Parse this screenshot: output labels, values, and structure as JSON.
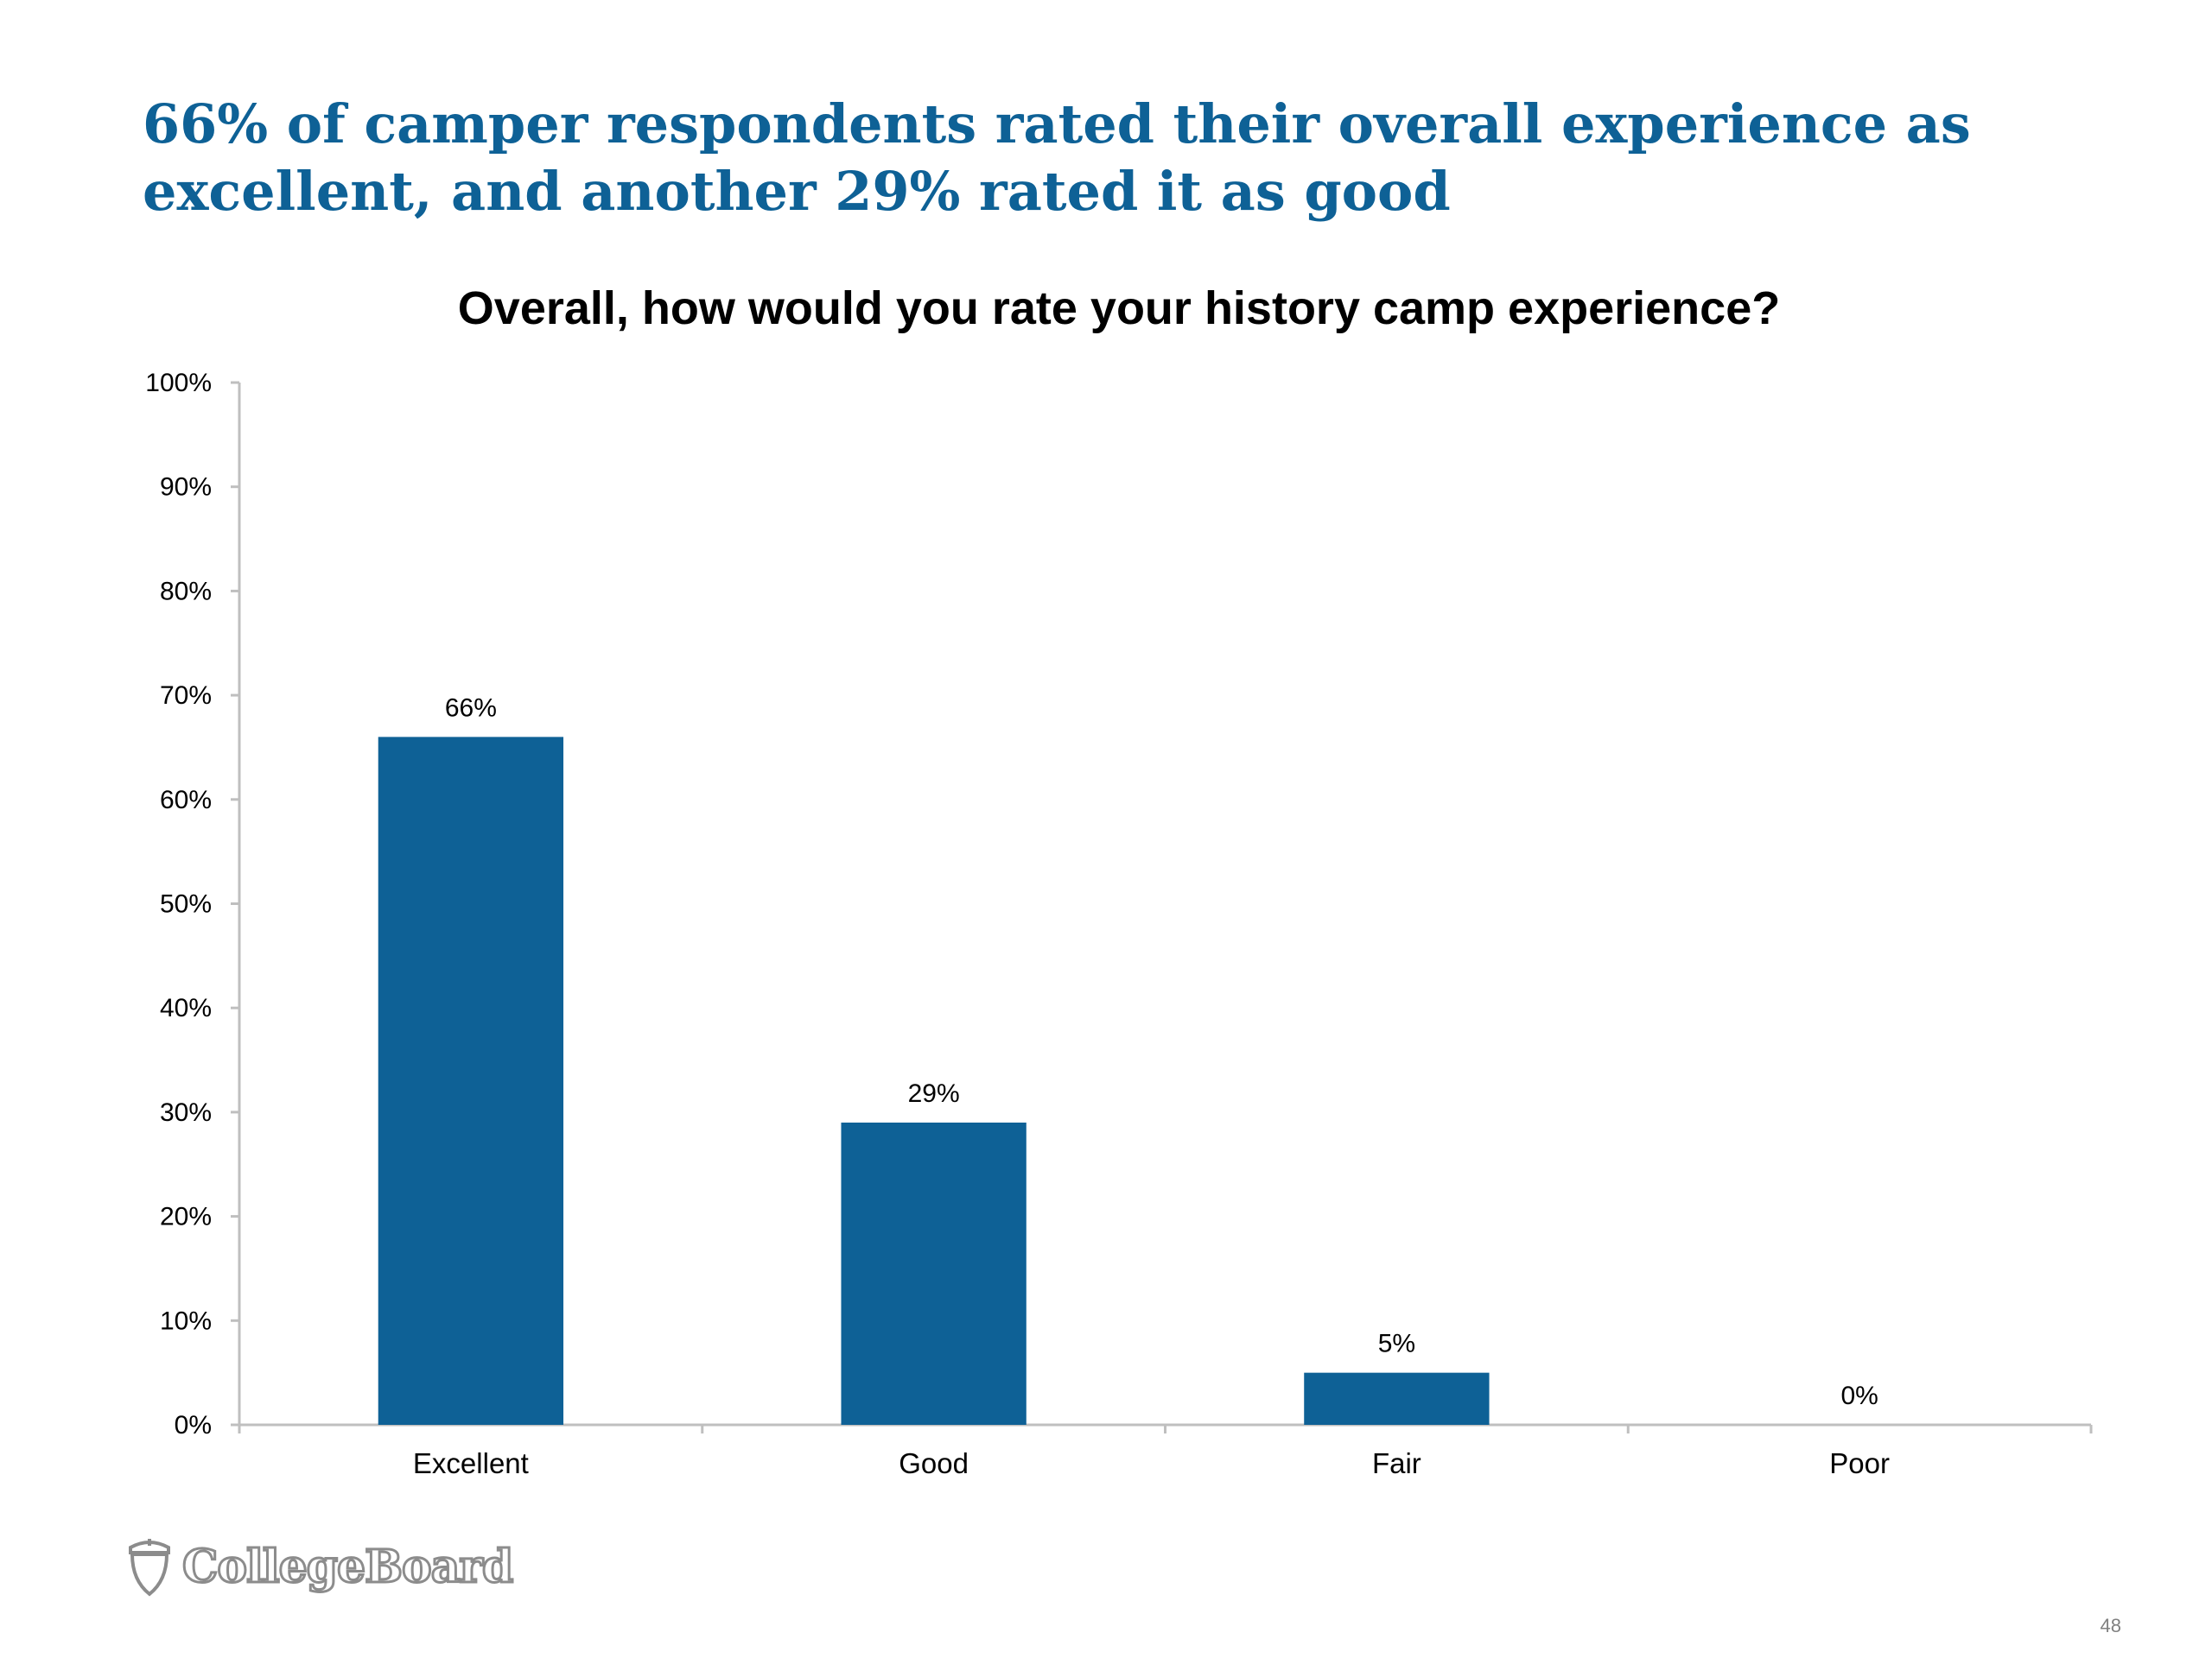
{
  "slide": {
    "title": "66% of camper respondents rated their overall experience as excellent, and another 29% rated it as good",
    "logo_text": "CollegeBoard",
    "page_number": "48"
  },
  "colors": {
    "bar": "#0e6196",
    "title": "#0e6196",
    "axis": "#bfbfbf"
  },
  "chart_data": {
    "type": "bar",
    "title": "Overall, how would you rate your history camp experience?",
    "categories": [
      "Excellent",
      "Good",
      "Fair",
      "Poor"
    ],
    "values": [
      66,
      29,
      5,
      0
    ],
    "data_labels": [
      "66%",
      "29%",
      "5%",
      "0%"
    ],
    "y_ticks": [
      "0%",
      "10%",
      "20%",
      "30%",
      "40%",
      "50%",
      "60%",
      "70%",
      "80%",
      "90%",
      "100%"
    ],
    "ylim": [
      0,
      100
    ],
    "grid": false,
    "legend": "none"
  }
}
